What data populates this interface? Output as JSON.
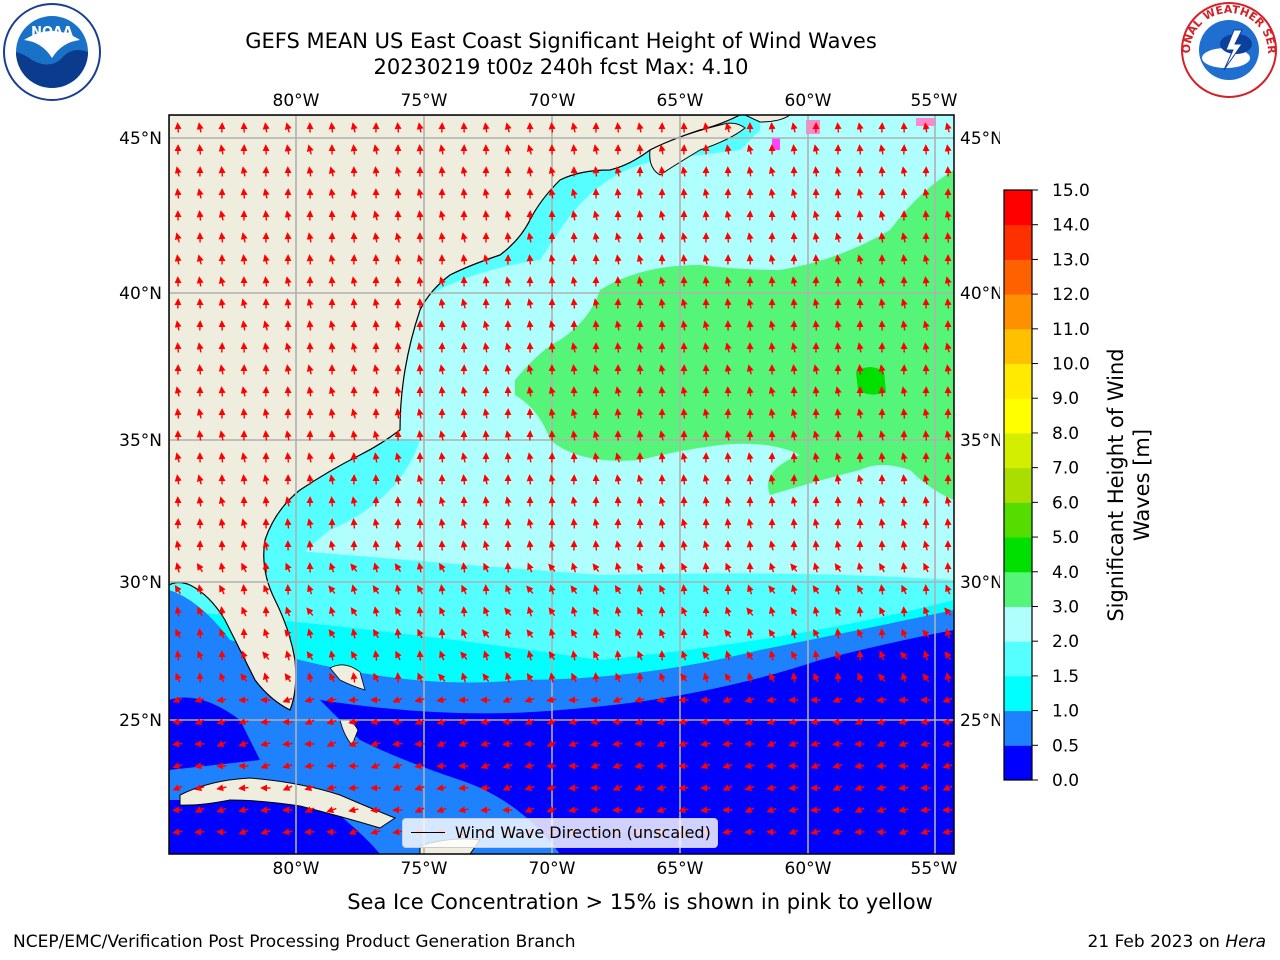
{
  "title": {
    "line1": "GEFS MEAN US East Coast Significant Height of Wind Waves",
    "line2": "20230219 t00z 240h fcst   Max: 4.10"
  },
  "logos": {
    "noaa_text": "NOAA",
    "nws_text": "NATIONAL WEATHER SERVICE"
  },
  "map": {
    "lon_labels": [
      "80°W",
      "75°W",
      "70°W",
      "65°W",
      "60°W",
      "55°W"
    ],
    "lat_labels": [
      "45°N",
      "40°N",
      "35°N",
      "30°N",
      "25°N"
    ],
    "lon_range": [
      -85,
      -54.2
    ],
    "lat_range": [
      20.2,
      45.8
    ]
  },
  "colorbar": {
    "label": "Significant Height of Wind Waves [m]",
    "ticks": [
      "0.0",
      "0.5",
      "1.0",
      "1.5",
      "2.0",
      "3.0",
      "4.0",
      "5.0",
      "6.0",
      "7.0",
      "8.0",
      "9.0",
      "10.0",
      "11.0",
      "12.0",
      "13.0",
      "14.0",
      "15.0"
    ],
    "colors": [
      "#0000ff",
      "#1e82ff",
      "#00ffff",
      "#55ffff",
      "#b0ffff",
      "#55f57a",
      "#00e000",
      "#55dd00",
      "#aadd00",
      "#d4ee00",
      "#ffff00",
      "#ffea00",
      "#ffc000",
      "#ff9000",
      "#ff6000",
      "#ff3000",
      "#ff0000"
    ]
  },
  "legend": {
    "text": "Wind Wave Direction (unscaled)"
  },
  "ice_note": "Sea Ice Concentration > 15% is shown in pink to yellow",
  "footer": {
    "left": "NCEP/EMC/Verification Post Processing Product Generation Branch",
    "right_date": "21 Feb 2023 on ",
    "right_machine": "Hera"
  },
  "colors": {
    "land": "#efedde",
    "grid": "#b0b0b0",
    "arrow": "#ff0000"
  }
}
